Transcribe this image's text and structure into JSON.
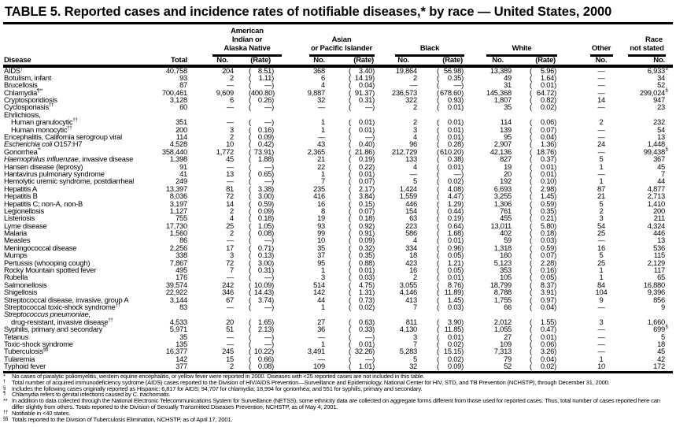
{
  "title": "TABLE 5. Reported cases and incidence rates of notifiable diseases,* by race — United States, 2000",
  "headers": {
    "disease": "Disease",
    "total": "Total",
    "ai_group": [
      "American",
      "Indian or",
      "Alaska Native"
    ],
    "api_group": [
      "Asian",
      "or Pacific Islander"
    ],
    "black": "Black",
    "white": "White",
    "other": "Other",
    "not_stated": [
      "Race",
      "not stated"
    ],
    "no": "No.",
    "rate": "(Rate)"
  },
  "rows": [
    {
      "disease": "AIDS",
      "sup": "†",
      "total": "40,758",
      "ai_no": "204",
      "ai_rate": "8.51",
      "api_no": "368",
      "api_rate": "3.40",
      "black_no": "19,864",
      "black_rate": "56.98",
      "white_no": "13,389",
      "white_rate": "5.96",
      "other": "—",
      "not_stated": "6,933",
      "ns_sup": "§"
    },
    {
      "disease": "Botulism, infant",
      "total": "93",
      "ai_no": "2",
      "ai_rate": "1.11",
      "api_no": "6",
      "api_rate": "14.19",
      "black_no": "2",
      "black_rate": "0.35",
      "white_no": "49",
      "white_rate": "1.64",
      "other": "—",
      "not_stated": "34"
    },
    {
      "disease": "Brucellosis",
      "total": "87",
      "ai_no": "—",
      "ai_rate": "—",
      "api_no": "4",
      "api_rate": "0.04",
      "black_no": "—",
      "black_rate": "—",
      "white_no": "31",
      "white_rate": "0.01",
      "other": "—",
      "not_stated": "52"
    },
    {
      "disease": "Chlamydia",
      "sup": "¶**",
      "total": "700,461",
      "ai_no": "9,609",
      "ai_rate": "400.80",
      "api_no": "9,887",
      "api_rate": "91.37",
      "black_no": "236,573",
      "black_rate": "678.60",
      "white_no": "145,368",
      "white_rate": "64.72",
      "other": "—",
      "not_stated": "299,024",
      "ns_sup": "§"
    },
    {
      "disease": "Cryptosporidiosis",
      "total": "3,128",
      "ai_no": "6",
      "ai_rate": "0.26",
      "api_no": "32",
      "api_rate": "0.31",
      "black_no": "322",
      "black_rate": "0.93",
      "white_no": "1,807",
      "white_rate": "0.82",
      "other": "14",
      "not_stated": "947"
    },
    {
      "disease": "Cyclosporiasis",
      "sup": "††",
      "total": "60",
      "ai_no": "—",
      "ai_rate": "—",
      "api_no": "—",
      "api_rate": "—",
      "black_no": "2",
      "black_rate": "0.01",
      "white_no": "35",
      "white_rate": "0.02",
      "other": "—",
      "not_stated": "23"
    },
    {
      "disease": "Ehrlichiosis,",
      "heading": true
    },
    {
      "disease": "Human granulocytic",
      "sup": "††",
      "indent": true,
      "total": "351",
      "ai_no": "—",
      "ai_rate": "—",
      "api_no": "1",
      "api_rate": "0.01",
      "black_no": "2",
      "black_rate": "0.01",
      "white_no": "114",
      "white_rate": "0.06",
      "other": "2",
      "not_stated": "232"
    },
    {
      "disease": "Human monocytic",
      "sup": "††",
      "indent": true,
      "total": "200",
      "ai_no": "3",
      "ai_rate": "0.16",
      "api_no": "1",
      "api_rate": "0.01",
      "black_no": "3",
      "black_rate": "0.01",
      "white_no": "139",
      "white_rate": "0.07",
      "other": "—",
      "not_stated": "54"
    },
    {
      "disease": "Encephalitis, California serogroup viral",
      "total": "114",
      "ai_no": "2",
      "ai_rate": "0.09",
      "api_no": "—",
      "api_rate": "—",
      "black_no": "4",
      "black_rate": "0.01",
      "white_no": "95",
      "white_rate": "0.04",
      "other": "—",
      "not_stated": "13"
    },
    {
      "disease_italic": "Escherichia coli",
      "disease": " O157:H7",
      "total": "4,528",
      "ai_no": "10",
      "ai_rate": "0.42",
      "api_no": "43",
      "api_rate": "0.40",
      "black_no": "96",
      "black_rate": "0.28",
      "white_no": "2,907",
      "white_rate": "1.36",
      "other": "24",
      "not_stated": "1,448"
    },
    {
      "disease": "Gonorrhea",
      "sup": "**",
      "total": "358,440",
      "ai_no": "1,772",
      "ai_rate": "73.91",
      "api_no": "2,365",
      "api_rate": "21.86",
      "black_no": "212,729",
      "black_rate": "610.20",
      "white_no": "42,136",
      "white_rate": "18.76",
      "other": "—",
      "not_stated": "99,438",
      "ns_sup": "§"
    },
    {
      "disease_italic": "Haemophilus influenzae",
      "disease": ", invasive disease",
      "total": "1,398",
      "ai_no": "45",
      "ai_rate": "1.88",
      "api_no": "21",
      "api_rate": "0.19",
      "black_no": "133",
      "black_rate": "0.38",
      "white_no": "827",
      "white_rate": "0.37",
      "other": "5",
      "not_stated": "367"
    },
    {
      "disease": "Hansen disease (leprosy)",
      "total": "91",
      "ai_no": "—",
      "ai_rate": "—",
      "api_no": "22",
      "api_rate": "0.22",
      "black_no": "4",
      "black_rate": "0.01",
      "white_no": "19",
      "white_rate": "0.01",
      "other": "1",
      "not_stated": "45"
    },
    {
      "disease": "Hantavirus pulmonary syndrome",
      "total": "41",
      "ai_no": "13",
      "ai_rate": "0.65",
      "api_no": "1",
      "api_rate": "0.01",
      "black_no": "—",
      "black_rate": "—",
      "white_no": "20",
      "white_rate": "0.01",
      "other": "—",
      "not_stated": "7"
    },
    {
      "disease": "Hemolytic uremic syndrome, postdiarrheal",
      "total": "249",
      "ai_no": "—",
      "ai_rate": "—",
      "api_no": "7",
      "api_rate": "0.07",
      "black_no": "5",
      "black_rate": "0.02",
      "white_no": "192",
      "white_rate": "0.10",
      "other": "1",
      "not_stated": "44"
    },
    {
      "disease": "Hepatitis A",
      "total": "13,397",
      "ai_no": "81",
      "ai_rate": "3.38",
      "api_no": "235",
      "api_rate": "2.17",
      "black_no": "1,424",
      "black_rate": "4.08",
      "white_no": "6,693",
      "white_rate": "2.98",
      "other": "87",
      "not_stated": "4,877"
    },
    {
      "disease": "Hepatitis B",
      "total": "8,036",
      "ai_no": "72",
      "ai_rate": "3.00",
      "api_no": "416",
      "api_rate": "3.84",
      "black_no": "1,559",
      "black_rate": "4.47",
      "white_no": "3,255",
      "white_rate": "1.45",
      "other": "21",
      "not_stated": "2,713"
    },
    {
      "disease": "Hepatitis C; non-A, non-B",
      "total": "3,197",
      "ai_no": "14",
      "ai_rate": "0.59",
      "api_no": "16",
      "api_rate": "0.15",
      "black_no": "446",
      "black_rate": "1.29",
      "white_no": "1,306",
      "white_rate": "0.59",
      "other": "5",
      "not_stated": "1,410"
    },
    {
      "disease": "Legionellosis",
      "total": "1,127",
      "ai_no": "2",
      "ai_rate": "0.09",
      "api_no": "8",
      "api_rate": "0.07",
      "black_no": "154",
      "black_rate": "0.44",
      "white_no": "761",
      "white_rate": "0.35",
      "other": "2",
      "not_stated": "200"
    },
    {
      "disease": "Listeriosis",
      "total": "755",
      "ai_no": "4",
      "ai_rate": "0.18",
      "api_no": "19",
      "api_rate": "0.18",
      "black_no": "63",
      "black_rate": "0.19",
      "white_no": "455",
      "white_rate": "0.21",
      "other": "3",
      "not_stated": "211"
    },
    {
      "disease": "Lyme disease",
      "total": "17,730",
      "ai_no": "25",
      "ai_rate": "1.05",
      "api_no": "93",
      "api_rate": "0.92",
      "black_no": "223",
      "black_rate": "0.64",
      "white_no": "13,011",
      "white_rate": "5.80",
      "other": "54",
      "not_stated": "4,324"
    },
    {
      "disease": "Malaria",
      "total": "1,560",
      "ai_no": "2",
      "ai_rate": "0.08",
      "api_no": "99",
      "api_rate": "0.91",
      "black_no": "586",
      "black_rate": "1.68",
      "white_no": "402",
      "white_rate": "0.18",
      "other": "25",
      "not_stated": "446"
    },
    {
      "disease": "Measles",
      "total": "86",
      "ai_no": "—",
      "ai_rate": "—",
      "api_no": "10",
      "api_rate": "0.09",
      "black_no": "4",
      "black_rate": "0.01",
      "white_no": "59",
      "white_rate": "0.03",
      "other": "—",
      "not_stated": "13"
    },
    {
      "disease": "Meningococcal disease",
      "total": "2,256",
      "ai_no": "17",
      "ai_rate": "0.71",
      "api_no": "35",
      "api_rate": "0.32",
      "black_no": "334",
      "black_rate": "0.96",
      "white_no": "1,318",
      "white_rate": "0.59",
      "other": "16",
      "not_stated": "536"
    },
    {
      "disease": "Mumps",
      "total": "338",
      "ai_no": "3",
      "ai_rate": "0.13",
      "api_no": "37",
      "api_rate": "0.35",
      "black_no": "18",
      "black_rate": "0.05",
      "white_no": "160",
      "white_rate": "0.07",
      "other": "5",
      "not_stated": "115"
    },
    {
      "disease": "Pertussis (whooping cough)",
      "total": "7,867",
      "ai_no": "72",
      "ai_rate": "3.00",
      "api_no": "95",
      "api_rate": "0.88",
      "black_no": "423",
      "black_rate": "1.21",
      "white_no": "5,123",
      "white_rate": "2.28",
      "other": "25",
      "not_stated": "2,129"
    },
    {
      "disease": "Rocky Mountain spotted fever",
      "total": "495",
      "ai_no": "7",
      "ai_rate": "0.31",
      "api_no": "1",
      "api_rate": "0.01",
      "black_no": "16",
      "black_rate": "0.05",
      "white_no": "353",
      "white_rate": "0.16",
      "other": "1",
      "not_stated": "117"
    },
    {
      "disease": "Rubella",
      "total": "176",
      "ai_no": "—",
      "ai_rate": "—",
      "api_no": "3",
      "api_rate": "0.03",
      "black_no": "2",
      "black_rate": "0.01",
      "white_no": "105",
      "white_rate": "0.05",
      "other": "1",
      "not_stated": "65"
    },
    {
      "disease": "Salmonellosis",
      "total": "39,574",
      "ai_no": "242",
      "ai_rate": "10.09",
      "api_no": "514",
      "api_rate": "4.75",
      "black_no": "3,055",
      "black_rate": "8.76",
      "white_no": "18,799",
      "white_rate": "8.37",
      "other": "84",
      "not_stated": "16,880"
    },
    {
      "disease": "Shigellosis",
      "total": "22,922",
      "ai_no": "346",
      "ai_rate": "14.43",
      "api_no": "142",
      "api_rate": "1.31",
      "black_no": "4,146",
      "black_rate": "11.89",
      "white_no": "8,788",
      "white_rate": "3.91",
      "other": "104",
      "not_stated": "9,396"
    },
    {
      "disease": "Streptococcal disease, invasive, group A",
      "total": "3,144",
      "ai_no": "67",
      "ai_rate": "3.74",
      "api_no": "44",
      "api_rate": "0.73",
      "black_no": "413",
      "black_rate": "1.45",
      "white_no": "1,755",
      "white_rate": "0.97",
      "other": "9",
      "not_stated": "856"
    },
    {
      "disease": "Streptococcal toxic-shock syndrome",
      "sup": "††",
      "total": "83",
      "ai_no": "—",
      "ai_rate": "—",
      "api_no": "1",
      "api_rate": "0.02",
      "black_no": "7",
      "black_rate": "0.03",
      "white_no": "66",
      "white_rate": "0.04",
      "other": "—",
      "not_stated": "9"
    },
    {
      "disease_italic": "Streptococcus pneumoniae,",
      "disease": "",
      "heading": true
    },
    {
      "disease": "drug-resistant, invasive disease",
      "sup": "††",
      "indent": true,
      "total": "4,533",
      "ai_no": "20",
      "ai_rate": "1.65",
      "api_no": "27",
      "api_rate": "0.63",
      "black_no": "811",
      "black_rate": "3.90",
      "white_no": "2,012",
      "white_rate": "1.55",
      "other": "3",
      "not_stated": "1,660"
    },
    {
      "disease": "Syphilis, primary and secondary",
      "sup": "**",
      "total": "5,971",
      "ai_no": "51",
      "ai_rate": "2.13",
      "api_no": "36",
      "api_rate": "0.33",
      "black_no": "4,130",
      "black_rate": "11.85",
      "white_no": "1,055",
      "white_rate": "0.47",
      "other": "—",
      "not_stated": "699",
      "ns_sup": "§"
    },
    {
      "disease": "Tetanus",
      "total": "35",
      "ai_no": "—",
      "ai_rate": "—",
      "api_no": "—",
      "api_rate": "—",
      "black_no": "3",
      "black_rate": "0.01",
      "white_no": "27",
      "white_rate": "0.01",
      "other": "—",
      "not_stated": "5"
    },
    {
      "disease": "Toxic-shock syndrome",
      "total": "135",
      "ai_no": "—",
      "ai_rate": "—",
      "api_no": "1",
      "api_rate": "0.01",
      "black_no": "7",
      "black_rate": "0.02",
      "white_no": "109",
      "white_rate": "0.06",
      "other": "—",
      "not_stated": "18"
    },
    {
      "disease": "Tuberculosis",
      "sup": "§§",
      "total": "16,377",
      "ai_no": "245",
      "ai_rate": "10.22",
      "api_no": "3,491",
      "api_rate": "32.26",
      "black_no": "5,283",
      "black_rate": "15.15",
      "white_no": "7,313",
      "white_rate": "3.26",
      "other": "—",
      "not_stated": "45"
    },
    {
      "disease": "Tularemia",
      "total": "142",
      "ai_no": "15",
      "ai_rate": "0.66",
      "api_no": "—",
      "api_rate": "—",
      "black_no": "5",
      "black_rate": "0.02",
      "white_no": "79",
      "white_rate": "0.04",
      "other": "1",
      "not_stated": "42"
    },
    {
      "disease": "Typhoid fever",
      "total": "377",
      "ai_no": "2",
      "ai_rate": "0.08",
      "api_no": "109",
      "api_rate": "1.01",
      "black_no": "32",
      "black_rate": "0.09",
      "white_no": "52",
      "white_rate": "0.02",
      "other": "10",
      "not_stated": "172"
    }
  ],
  "footnotes": [
    {
      "mark": "*",
      "text": "No cases of paralytic poliomyelitis, western equine encephalitis, or yellow fever were reported in 2000. Diseases with <25 reported cases are not included in this table."
    },
    {
      "mark": "†",
      "text": "Total number of acquired immunodeficiency sydrome (AIDS) cases reported to the Division of HIV/AIDS Prevention—Surveillance and Epidemiology, National Center for HIV, STD, and TB Prevention (NCHSTP), through December 31, 2000."
    },
    {
      "mark": "§",
      "text": "Includes the following cases originally reported as Hispanic: 6,817 for AIDS; 94,707 for chlamydia; 18,994 for gonorrhea; and 551 for syphilis, primary and secondary."
    },
    {
      "mark": "¶",
      "text": "Chlamydia refers to genital infections caused by ",
      "italic": "C. trachomatis",
      "after": "."
    },
    {
      "mark": "**",
      "text": "In addition to data collected through the National Electronic Telecommunications System for Surveillance (NETSS), some ethnicity data are collected on aggregate forms different from those used for reported cases. Thus, total number of cases reported here can differ slightly from others. Totals reported to the Division of Sexually Transmitted Diseases Prevention, NCHSTP, as of May 4, 2001."
    },
    {
      "mark": "††",
      "text": "Notifiable in <40 states."
    },
    {
      "mark": "§§",
      "text": "Totals reported to the Division of Tuberculosis Elimination, NCHSTP, as of April 17, 2001."
    }
  ]
}
